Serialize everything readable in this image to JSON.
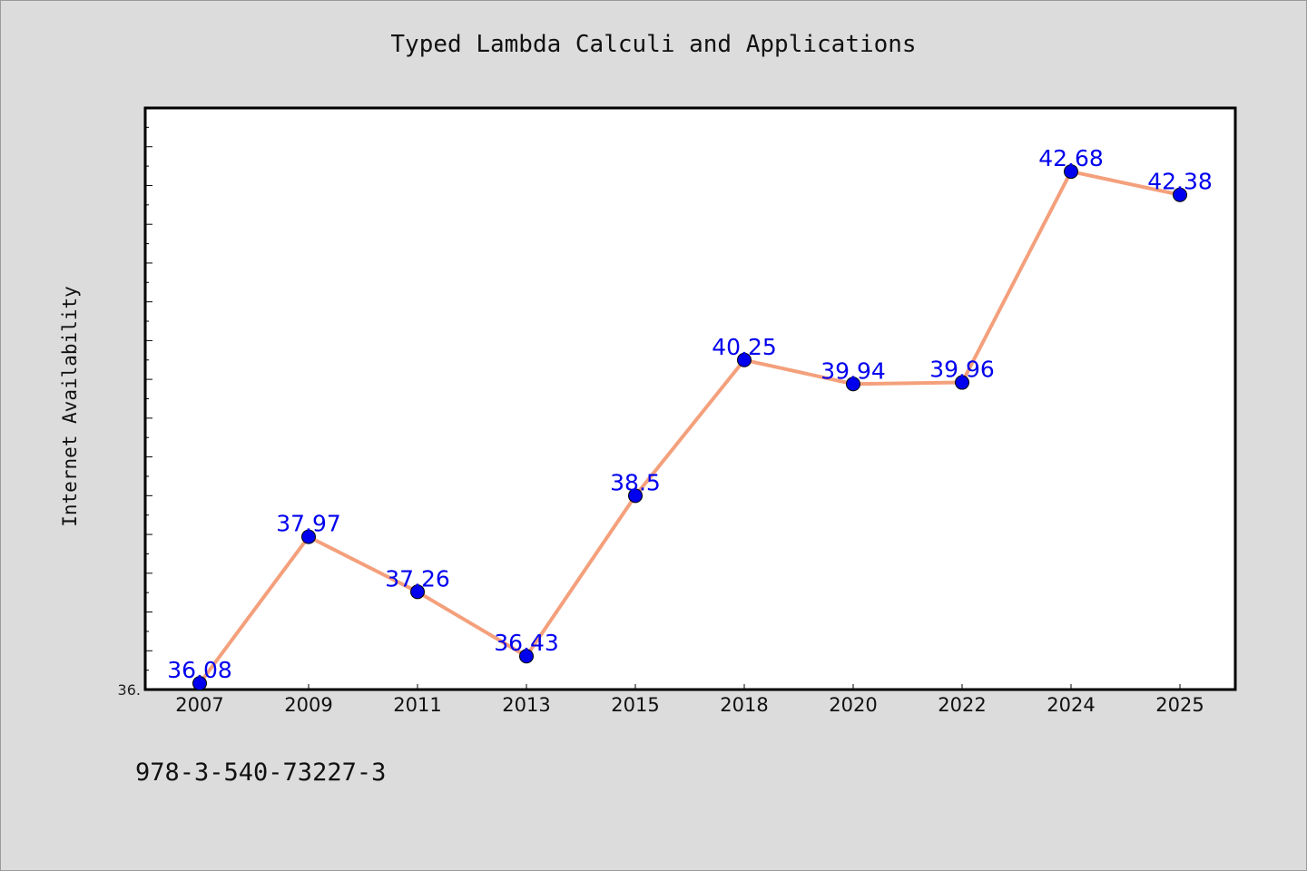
{
  "chart_data": {
    "type": "line",
    "title": "Typed Lambda Calculi and Applications",
    "ylabel": "Internet Availability",
    "xlabel": "",
    "categories": [
      "2007",
      "2009",
      "2011",
      "2013",
      "2015",
      "2018",
      "2020",
      "2022",
      "2024",
      "2025"
    ],
    "series": [
      {
        "values": [
          36.08,
          37.97,
          37.26,
          36.43,
          38.5,
          40.25,
          39.94,
          39.96,
          42.68,
          42.38
        ],
        "data_labels": [
          "36.08",
          "37.97",
          "37.26",
          "36.43",
          "38.5",
          "40.25",
          "39.94",
          "39.96",
          "42.68",
          "42.38"
        ],
        "line_color": "#f4a07c",
        "marker_color": "#0000ee"
      }
    ],
    "ylim": [
      36.0,
      43.5
    ],
    "y_tick_label": "36.",
    "label_color": "#0000ee",
    "grid": false,
    "legend": "none"
  },
  "footer": {
    "code": "978-3-540-73227-3"
  }
}
